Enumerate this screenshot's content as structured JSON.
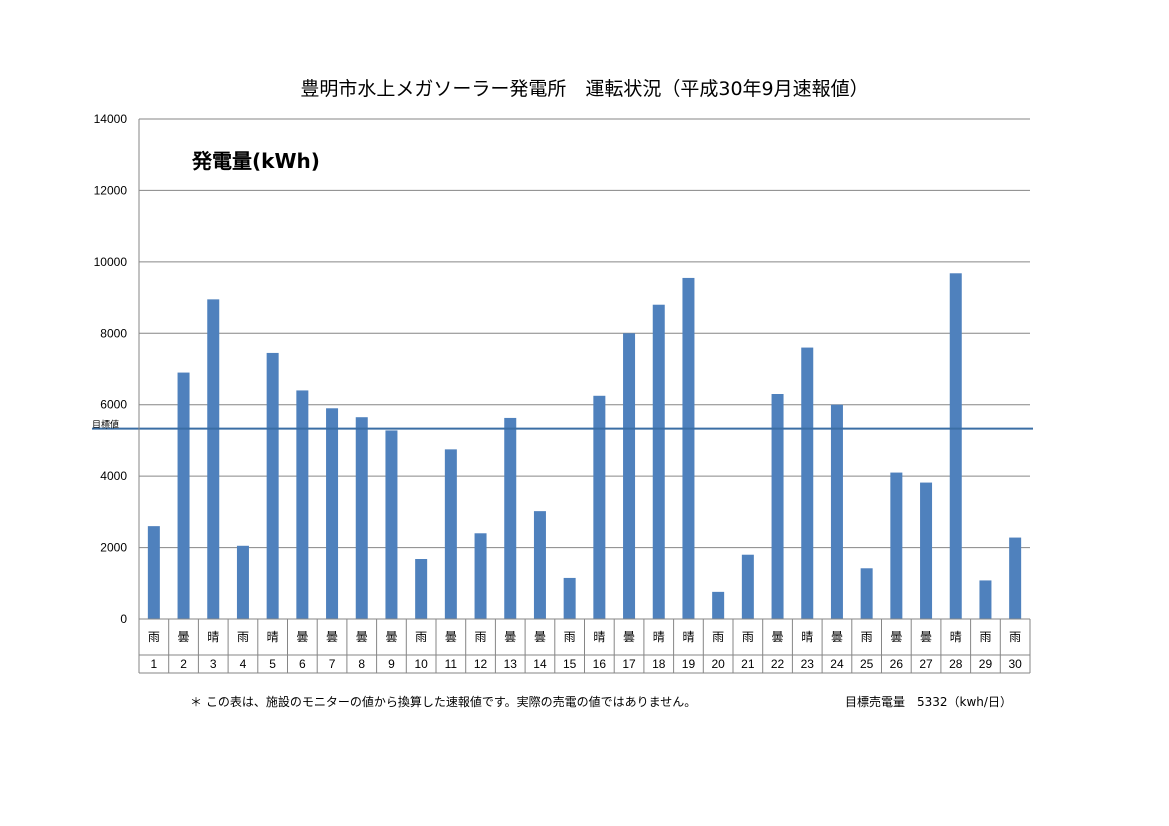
{
  "chart_data": {
    "type": "bar",
    "title": "豊明市水上メガソーラー発電所　運転状況（平成30年9月速報値）",
    "inner_title": "発電量(kWh)",
    "ylim": [
      0,
      14000
    ],
    "y_ticks": [
      0,
      2000,
      4000,
      6000,
      8000,
      10000,
      12000,
      14000
    ],
    "grid": true,
    "categories": [
      "1",
      "2",
      "3",
      "4",
      "5",
      "6",
      "7",
      "8",
      "9",
      "10",
      "11",
      "12",
      "13",
      "14",
      "15",
      "16",
      "17",
      "18",
      "19",
      "20",
      "21",
      "22",
      "23",
      "24",
      "25",
      "26",
      "27",
      "28",
      "29",
      "30"
    ],
    "weather": [
      "雨",
      "曇",
      "晴",
      "雨",
      "晴",
      "曇",
      "曇",
      "曇",
      "曇",
      "雨",
      "曇",
      "雨",
      "曇",
      "曇",
      "雨",
      "晴",
      "曇",
      "晴",
      "晴",
      "雨",
      "雨",
      "曇",
      "晴",
      "曇",
      "雨",
      "曇",
      "曇",
      "晴",
      "雨",
      "雨"
    ],
    "values": [
      2600,
      6900,
      8950,
      2050,
      7450,
      6400,
      5900,
      5650,
      5280,
      1680,
      4750,
      2400,
      5630,
      3020,
      1150,
      6250,
      8000,
      8800,
      9550,
      760,
      1800,
      6300,
      7600,
      6000,
      1420,
      4100,
      3820,
      9680,
      1080,
      2280
    ],
    "target": {
      "value": 5332,
      "label": "目標値"
    },
    "bar_color": "#4f81bd",
    "target_line_color": "#3a6ea5"
  },
  "footnote": "＊ この表は、施設のモニターの値から換算した速報値です。実際の売電の値ではありません。",
  "target_note": "目標売電量　5332（kwh/日）"
}
